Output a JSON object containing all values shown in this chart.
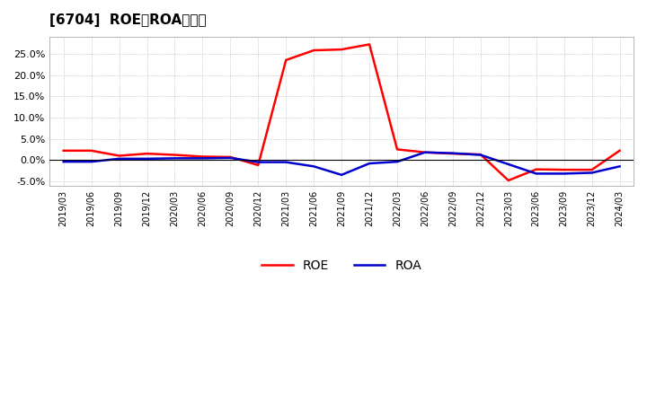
{
  "title": "[6704]  ROE、ROAの推移",
  "dates": [
    "2019/03",
    "2019/06",
    "2019/09",
    "2019/12",
    "2020/03",
    "2020/06",
    "2020/09",
    "2020/12",
    "2021/03",
    "2021/06",
    "2021/09",
    "2021/12",
    "2022/03",
    "2022/06",
    "2022/09",
    "2022/12",
    "2023/03",
    "2023/06",
    "2023/09",
    "2023/12",
    "2024/03"
  ],
  "roe": [
    2.2,
    2.2,
    1.0,
    1.5,
    1.2,
    0.8,
    0.7,
    -1.2,
    23.5,
    25.8,
    26.0,
    27.2,
    2.5,
    1.8,
    1.5,
    1.3,
    -4.8,
    -2.2,
    -2.3,
    -2.3,
    2.2
  ],
  "roa": [
    -0.4,
    -0.4,
    0.3,
    0.3,
    0.4,
    0.4,
    0.5,
    -0.5,
    -0.5,
    -1.5,
    -3.5,
    -0.8,
    -0.4,
    1.8,
    1.6,
    1.2,
    -1.0,
    -3.2,
    -3.2,
    -3.0,
    -1.5
  ],
  "roe_color": "#ff0000",
  "roa_color": "#0000cc",
  "background_color": "#ffffff",
  "grid_color": "#aaaaaa",
  "ylim": [
    -6.0,
    29.0
  ],
  "yticks": [
    -5.0,
    0.0,
    5.0,
    10.0,
    15.0,
    20.0,
    25.0
  ],
  "legend_labels": [
    "ROE",
    "ROA"
  ],
  "line_width": 1.8
}
